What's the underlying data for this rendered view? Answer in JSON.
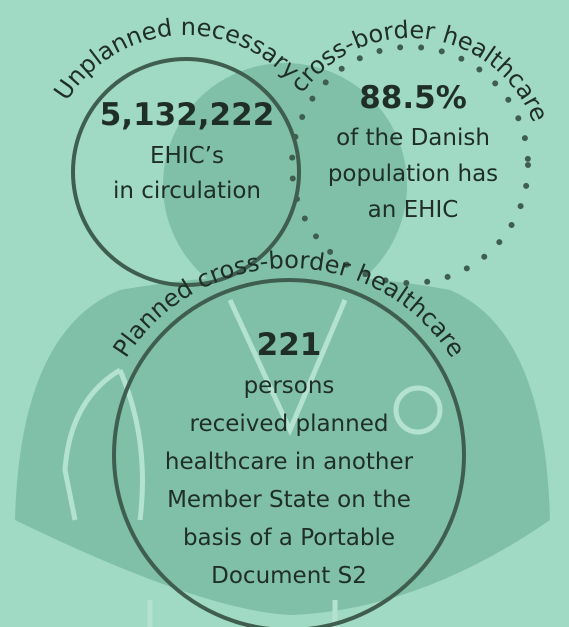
{
  "unplanned": {
    "arc_label_1": "Unplanned necessary",
    "arc_label_2": "cross-border healthcare",
    "ehic_count": "5,132,222",
    "ehic_lines": [
      "EHIC’s",
      "in circulation"
    ],
    "share": "88.5%",
    "share_lines": [
      "of the Danish",
      "population has",
      "an EHIC"
    ]
  },
  "planned": {
    "arc_label": "Planned cross-border healthcare",
    "count": "221",
    "lines": [
      "persons",
      "received planned",
      "healthcare in another",
      "Member State on the",
      "basis of a Portable",
      "Document S2"
    ]
  }
}
